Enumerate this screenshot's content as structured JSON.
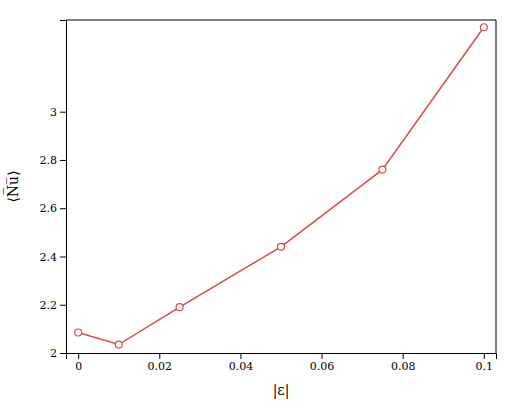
{
  "chart_data": {
    "type": "line",
    "x": [
      0,
      0.01,
      0.025,
      0.05,
      0.075,
      0.1
    ],
    "values": [
      2.085,
      2.035,
      2.19,
      2.44,
      2.76,
      3.35
    ],
    "color": "#d44c4c",
    "marker": "circle",
    "xlabel": "|ε|",
    "ylabel": "⟨N̅u̅⟩",
    "xlim": [
      -0.003,
      0.103
    ],
    "ylim": [
      2.0,
      3.38
    ],
    "xticks": [
      0,
      0.02,
      0.04,
      0.06,
      0.08,
      0.1
    ],
    "yticks": [
      2,
      2.2,
      2.4,
      2.6,
      2.8,
      3
    ],
    "grid": false
  }
}
